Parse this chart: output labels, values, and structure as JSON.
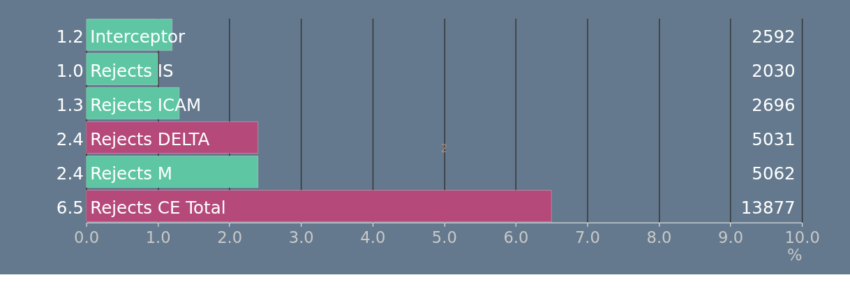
{
  "chart_data": {
    "type": "bar",
    "orientation": "horizontal",
    "xlabel": "%",
    "categories": [
      "Interceptor",
      "Rejects IS",
      "Rejects ICAM",
      "Rejects DELTA",
      "Rejects M",
      "Rejects CE Total"
    ],
    "values": [
      1.2,
      1.0,
      1.3,
      2.4,
      2.4,
      6.5
    ],
    "colors": [
      "#5fc6a4",
      "#5fc6a4",
      "#5fc6a4",
      "#b5497a",
      "#5fc6a4",
      "#b5497a"
    ],
    "value_labels": [
      "1.2",
      "1.0",
      "1.3",
      "2.4",
      "2.4",
      "6.5"
    ],
    "xlim": [
      0,
      10
    ],
    "xticks": [
      {
        "value": 0,
        "label": "0.0"
      },
      {
        "value": 1,
        "label": "1.0"
      },
      {
        "value": 2,
        "label": "2.0"
      },
      {
        "value": 3,
        "label": "3.0"
      },
      {
        "value": 4,
        "label": "4.0"
      },
      {
        "value": 5,
        "label": "5.0"
      },
      {
        "value": 6,
        "label": "6.0"
      },
      {
        "value": 7,
        "label": "7.0"
      },
      {
        "value": 8,
        "label": "8.0"
      },
      {
        "value": 9,
        "label": "9.0"
      },
      {
        "value": 10,
        "label": "10.0"
      }
    ],
    "grid": "x",
    "annotations": [
      "2592",
      "2030",
      "2696",
      "5031",
      "5062",
      "13877",
      "2"
    ]
  }
}
